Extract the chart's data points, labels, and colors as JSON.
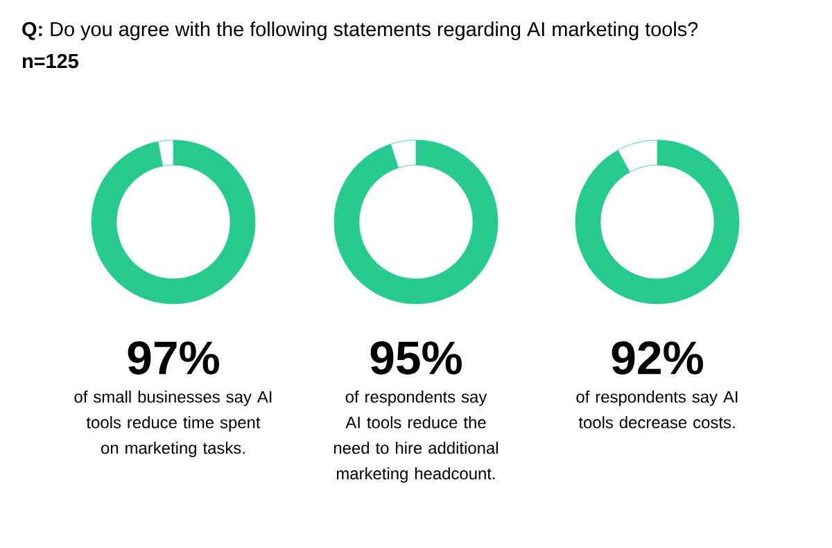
{
  "chart_data": [
    {
      "type": "donut",
      "title": "**Q:** Do you agree with the following statements regarding AI marketing tools?",
      "subtitle": "n=125",
      "categories": [
        null,
        null
      ],
      "values": [
        97,
        3
      ],
      "colors": [
        "#27ca8e",
        "#ffffff"
      ],
      "value_labels": [
        "97%",
        null
      ],
      "annotations": [
        "of small businesses say AI tools reduce time spent on marketing tasks."
      ]
    },
    {
      "type": "donut",
      "categories": [
        null,
        null
      ],
      "values": [
        95,
        5
      ],
      "colors": [
        "#27ca8e",
        "#ffffff"
      ],
      "value_labels": [
        "95%",
        null
      ],
      "annotations": [
        "of respondents say AI tools reduce the need to hire additional marketing headcount."
      ]
    },
    {
      "type": "donut",
      "categories": [
        null,
        null
      ],
      "values": [
        92,
        8
      ],
      "colors": [
        "#27ca8e",
        "#ffffff"
      ],
      "value_labels": [
        "92%",
        null
      ],
      "annotations": [
        "of respondents say AI tools decrease costs."
      ]
    }
  ]
}
